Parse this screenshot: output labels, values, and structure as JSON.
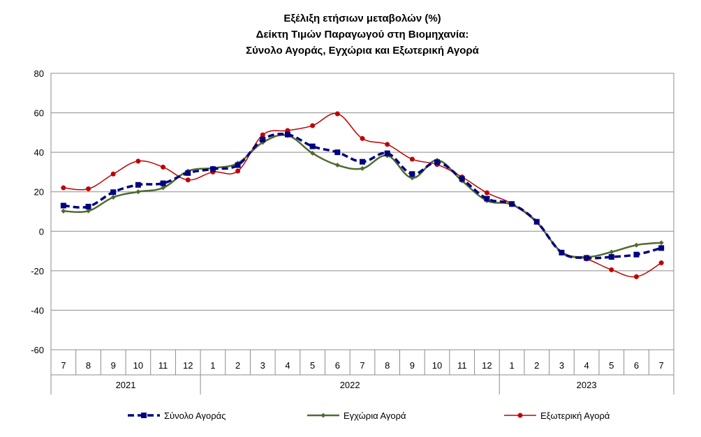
{
  "chart_data": {
    "type": "line",
    "title": [
      "Εξέλιξη ετήσιων μεταβολών (%)",
      "Δείκτη Τιμών Παραγωγού στη Βιομηχανία:",
      "Σύνολο Αγοράς, Εγχώρια και Εξωτερική Αγορά"
    ],
    "categories": [
      "7",
      "8",
      "9",
      "10",
      "11",
      "12",
      "1",
      "2",
      "3",
      "4",
      "5",
      "6",
      "7",
      "8",
      "9",
      "10",
      "11",
      "12",
      "1",
      "2",
      "3",
      "4",
      "5",
      "6",
      "7"
    ],
    "years": [
      {
        "label": "2021",
        "from": 0,
        "to": 5
      },
      {
        "label": "2022",
        "from": 6,
        "to": 17
      },
      {
        "label": "2023",
        "from": 18,
        "to": 24
      }
    ],
    "ylim": [
      -60,
      80
    ],
    "yticks": [
      80,
      60,
      40,
      20,
      0,
      -20,
      -40,
      -60
    ],
    "grid": true,
    "legend_position": "bottom",
    "series": [
      {
        "name": "Σύνολο Αγοράς",
        "color": "#000080",
        "style": "dashed",
        "marker": "square",
        "values": [
          13,
          12.5,
          19.8,
          23.5,
          24.3,
          29.5,
          31.5,
          33.5,
          46.5,
          49.0,
          43.0,
          40.0,
          35.2,
          39.5,
          29.0,
          35.0,
          26.5,
          16.5,
          13.8,
          4.8,
          -10.8,
          -13.5,
          -13.0,
          -11.8,
          -8.5
        ]
      },
      {
        "name": "Εγχώρια Αγορά",
        "color": "#4E6B2F",
        "style": "solid",
        "marker": "diamond",
        "values": [
          10.2,
          10.3,
          17.2,
          20.0,
          22.0,
          30.5,
          32.0,
          34.5,
          45.0,
          48.5,
          39.5,
          33.5,
          31.8,
          38.3,
          27.0,
          36.0,
          25.5,
          15.5,
          13.5,
          4.5,
          -10.5,
          -13.0,
          -10.5,
          -7.0,
          -5.8
        ]
      },
      {
        "name": "Εξωτερική Αγορά",
        "color": "#C00000",
        "style": "solid",
        "marker": "circle",
        "values": [
          22.0,
          21.5,
          29.0,
          35.5,
          32.5,
          26.0,
          30.0,
          30.5,
          48.8,
          51.0,
          53.5,
          59.5,
          47.0,
          44.0,
          36.5,
          33.8,
          27.5,
          19.5,
          14.0,
          5.0,
          -11.0,
          -14.0,
          -19.5,
          -23.0,
          -16.0
        ]
      }
    ]
  }
}
